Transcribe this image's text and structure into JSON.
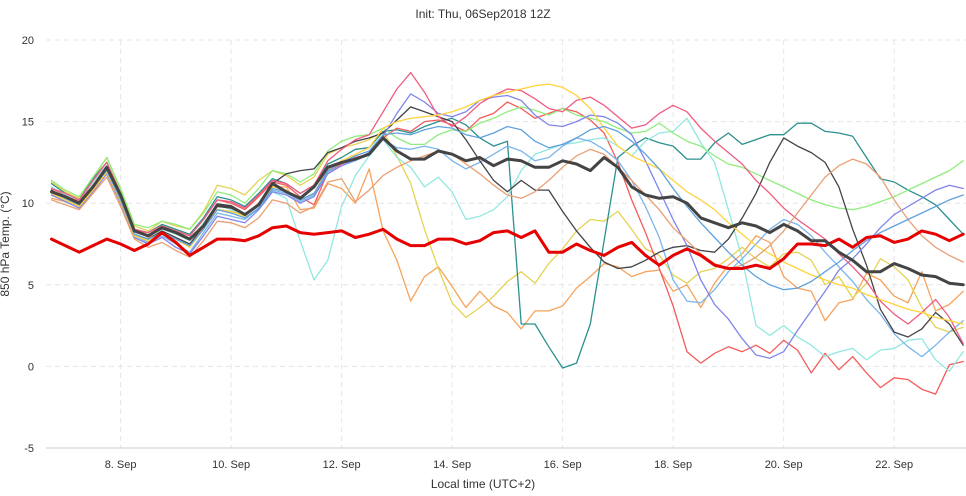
{
  "chart_data": {
    "type": "line",
    "title": "Init: Thu, 06Sep2018 12Z",
    "xlabel": "Local time (UTC+2)",
    "ylabel": "850 hPa Temp. (°C)",
    "ylim": [
      -5,
      20
    ],
    "yticks": [
      -5,
      0,
      5,
      10,
      15,
      20
    ],
    "xlim": [
      6.65,
      23.3
    ],
    "xticks": [
      8,
      10,
      12,
      14,
      16,
      18,
      20,
      22
    ],
    "xtick_labels": [
      "8. Sep",
      "10. Sep",
      "12. Sep",
      "14. Sep",
      "16. Sep",
      "18. Sep",
      "20. Sep",
      "22. Sep"
    ],
    "grid": true,
    "legend": "none",
    "x_unit": "day of September 2018 (local time)",
    "x": [
      6.75,
      7.0,
      7.25,
      7.5,
      7.75,
      8.0,
      8.25,
      8.5,
      8.75,
      9.0,
      9.25,
      9.5,
      9.75,
      10.0,
      10.25,
      10.5,
      10.75,
      11.0,
      11.25,
      11.5,
      11.75,
      12.0,
      12.25,
      12.5,
      12.75,
      13.0,
      13.25,
      13.5,
      13.75,
      14.0,
      14.25,
      14.5,
      14.75,
      15.0,
      15.25,
      15.5,
      15.75,
      16.0,
      16.25,
      16.5,
      16.75,
      17.0,
      17.25,
      17.5,
      17.75,
      18.0,
      18.25,
      18.5,
      18.75,
      19.0,
      19.25,
      19.5,
      19.75,
      20.0,
      20.25,
      20.5,
      20.75,
      21.0,
      21.25,
      21.5,
      21.75,
      22.0,
      22.25,
      22.5,
      22.75,
      23.0,
      23.25
    ],
    "series": [
      {
        "color": "#e60000",
        "width": 3,
        "values": [
          7.8,
          7.4,
          7.0,
          7.4,
          7.8,
          7.5,
          7.1,
          7.5,
          8.2,
          7.6,
          6.8,
          7.3,
          7.8,
          7.8,
          7.7,
          8.0,
          8.5,
          8.6,
          8.2,
          8.1,
          8.2,
          8.3,
          7.9,
          8.1,
          8.4,
          7.8,
          7.4,
          7.4,
          7.8,
          7.8,
          7.5,
          7.7,
          8.2,
          8.3,
          7.9,
          8.3,
          7.0,
          7.0,
          7.5,
          7.1,
          6.8,
          7.3,
          7.6,
          6.8,
          6.2,
          6.8,
          7.2,
          6.8,
          6.2,
          6.0,
          6.0,
          6.2,
          6.0,
          6.6,
          7.5,
          7.5,
          7.4,
          7.8,
          7.3,
          7.9,
          8.0,
          7.6,
          7.8,
          8.3,
          8.1,
          7.7,
          8.1
        ]
      },
      {
        "color": "#444444",
        "width": 3,
        "values": [
          10.7,
          10.4,
          10.0,
          11.0,
          12.2,
          10.5,
          8.3,
          8.0,
          8.5,
          8.2,
          7.8,
          8.6,
          9.9,
          9.8,
          9.3,
          9.9,
          11.2,
          10.7,
          10.3,
          11.0,
          12.2,
          12.5,
          12.7,
          13.0,
          14.0,
          13.2,
          12.7,
          12.7,
          13.2,
          13.0,
          12.6,
          12.8,
          12.3,
          12.7,
          12.6,
          12.2,
          12.2,
          12.6,
          12.4,
          12.0,
          12.8,
          12.2,
          11.0,
          10.5,
          10.3,
          10.4,
          10.0,
          9.1,
          8.8,
          8.5,
          8.8,
          8.6,
          8.2,
          8.7,
          8.3,
          7.7,
          7.7,
          7.0,
          6.5,
          5.8,
          5.8,
          6.3,
          6.0,
          5.6,
          5.5,
          5.1,
          5.0
        ]
      },
      {
        "color": "#f7a35c",
        "width": 1.3,
        "values": [
          10.3,
          10.1,
          9.9,
          11.0,
          12.0,
          10.3,
          8.4,
          7.9,
          8.2,
          7.8,
          7.4,
          8.5,
          9.6,
          9.5,
          9.3,
          10.0,
          11.0,
          11.0,
          9.6,
          9.7,
          11.2,
          10.9,
          10.0,
          12.1,
          8.3,
          6.5,
          4.0,
          5.5,
          6.1,
          4.9,
          3.6,
          4.6,
          3.7,
          3.3,
          2.3,
          3.4,
          3.4,
          3.7,
          4.8,
          5.5,
          6.3,
          6.1,
          5.5,
          5.8,
          5.9,
          4.6,
          5.0,
          3.6,
          5.1,
          6.2,
          6.9,
          8.0,
          7.6,
          5.5,
          4.8,
          4.6,
          2.8,
          3.9,
          4.1,
          5.7,
          5.3,
          4.3,
          3.9,
          5.8,
          3.4,
          3.8,
          4.6
        ]
      },
      {
        "color": "#e4d354",
        "width": 1.3,
        "values": [
          11.3,
          10.7,
          10.3,
          11.5,
          12.8,
          10.8,
          8.6,
          8.3,
          8.9,
          8.6,
          8.4,
          9.5,
          11.1,
          10.9,
          10.5,
          11.4,
          12.0,
          11.7,
          11.1,
          11.6,
          13.0,
          13.4,
          13.6,
          13.9,
          14.4,
          12.9,
          11.2,
          8.4,
          6.0,
          3.9,
          3.0,
          3.6,
          4.3,
          5.2,
          5.8,
          5.1,
          6.3,
          7.2,
          8.3,
          9.0,
          8.9,
          9.5,
          8.4,
          7.2,
          6.8,
          5.6,
          5.1,
          5.8,
          6.0,
          6.6,
          7.3,
          6.6,
          6.1,
          6.9,
          7.0,
          6.5,
          5.0,
          5.5,
          4.2,
          5.1,
          6.6,
          6.1,
          5.3,
          3.6,
          2.4,
          2.1,
          2.4
        ]
      },
      {
        "color": "#2b908f",
        "width": 1.3,
        "values": [
          11.2,
          10.6,
          10.2,
          11.5,
          12.5,
          10.6,
          8.4,
          8.2,
          8.7,
          8.4,
          8.1,
          9.1,
          10.4,
          10.2,
          9.8,
          10.6,
          11.5,
          11.2,
          10.6,
          11.1,
          12.4,
          12.8,
          13.3,
          13.4,
          14.4,
          14.5,
          14.3,
          14.7,
          15.0,
          15.2,
          14.8,
          14.0,
          13.5,
          13.8,
          2.6,
          2.6,
          1.2,
          -0.1,
          0.2,
          2.6,
          7.7,
          12.8,
          13.5,
          14.0,
          13.7,
          13.5,
          12.7,
          12.7,
          13.7,
          14.3,
          13.6,
          13.9,
          14.2,
          14.2,
          14.9,
          14.9,
          14.4,
          14.3,
          14.1,
          12.8,
          11.5,
          11.3,
          10.8,
          10.4,
          9.9,
          9.0,
          8.1
        ]
      },
      {
        "color": "#f45b5b",
        "width": 1.3,
        "values": [
          10.9,
          10.5,
          10.1,
          11.3,
          12.3,
          10.6,
          8.3,
          8.2,
          8.6,
          8.3,
          8.0,
          9.0,
          10.2,
          10.0,
          9.6,
          10.4,
          11.3,
          11.1,
          10.4,
          9.9,
          11.9,
          12.4,
          12.8,
          13.0,
          14.0,
          14.6,
          14.4,
          15.0,
          15.1,
          14.8,
          14.4,
          15.2,
          15.5,
          16.2,
          15.8,
          15.2,
          15.5,
          15.8,
          15.6,
          15.1,
          14.3,
          12.5,
          10.2,
          8.2,
          6.0,
          3.7,
          0.9,
          0.2,
          0.8,
          1.2,
          0.9,
          1.3,
          0.8,
          1.6,
          1.0,
          -0.4,
          0.8,
          -0.2,
          0.6,
          -0.4,
          -1.3,
          -0.7,
          -0.8,
          -1.4,
          -1.7,
          0.1,
          0.3
        ]
      },
      {
        "color": "#91e8e1",
        "width": 1.3,
        "values": [
          11.0,
          10.5,
          10.2,
          11.3,
          12.3,
          10.4,
          8.3,
          8.0,
          8.4,
          8.1,
          7.7,
          8.8,
          9.9,
          9.6,
          9.3,
          9.9,
          10.7,
          10.3,
          7.7,
          5.3,
          6.5,
          9.8,
          11.7,
          12.9,
          13.9,
          12.8,
          12.2,
          11.0,
          11.6,
          10.7,
          9.0,
          9.2,
          9.6,
          10.4,
          12.0,
          13.0,
          13.3,
          13.6,
          13.7,
          13.9,
          14.0,
          13.5,
          12.9,
          13.8,
          14.3,
          14.4,
          15.2,
          13.7,
          12.5,
          9.6,
          6.6,
          2.5,
          1.9,
          2.5,
          1.8,
          1.3,
          0.6,
          0.9,
          1.1,
          0.4,
          1.0,
          1.1,
          1.6,
          1.7,
          0.4,
          -0.3,
          0.9
        ]
      },
      {
        "color": "#7cb5ec",
        "width": 1.3,
        "values": [
          10.6,
          10.2,
          9.8,
          10.9,
          11.9,
          10.1,
          8.0,
          7.6,
          8.0,
          7.5,
          7.0,
          8.2,
          9.4,
          9.2,
          9.0,
          9.7,
          10.8,
          10.6,
          10.1,
          10.5,
          11.9,
          12.3,
          12.6,
          13.0,
          13.9,
          13.4,
          13.3,
          13.5,
          13.3,
          12.6,
          12.1,
          12.5,
          13.0,
          13.5,
          13.2,
          12.6,
          12.8,
          13.5,
          14.0,
          13.8,
          13.3,
          12.6,
          11.4,
          9.8,
          7.9,
          5.3,
          4.0,
          3.9,
          4.7,
          5.8,
          6.6,
          7.5,
          8.4,
          9.0,
          8.7,
          8.0,
          7.0,
          6.1,
          5.2,
          4.1,
          3.2,
          2.0,
          1.2,
          0.6,
          1.3,
          2.1,
          2.8
        ]
      },
      {
        "color": "#90ed7d",
        "width": 1.3,
        "values": [
          11.4,
          10.8,
          10.4,
          11.6,
          12.8,
          10.9,
          8.7,
          8.5,
          8.9,
          8.7,
          8.4,
          9.4,
          10.7,
          10.5,
          10.0,
          10.9,
          12.0,
          11.8,
          11.3,
          11.8,
          13.2,
          13.8,
          14.1,
          14.2,
          14.6,
          14.0,
          13.6,
          13.6,
          14.2,
          14.5,
          14.4,
          14.9,
          15.2,
          15.6,
          15.9,
          15.7,
          15.4,
          15.8,
          15.4,
          15.2,
          15.0,
          14.6,
          14.3,
          14.4,
          14.9,
          14.3,
          13.8,
          13.5,
          12.9,
          12.4,
          12.2,
          11.8,
          11.4,
          11.0,
          10.6,
          10.2,
          9.9,
          9.7,
          9.6,
          9.8,
          10.1,
          10.4,
          10.8,
          11.2,
          11.6,
          12.0,
          12.6
        ]
      },
      {
        "color": "#434348",
        "width": 1.3,
        "values": [
          10.8,
          10.3,
          9.9,
          11.1,
          12.1,
          10.3,
          8.1,
          7.8,
          8.3,
          7.9,
          7.5,
          8.6,
          9.8,
          9.7,
          9.3,
          9.9,
          11.2,
          11.8,
          12.0,
          12.1,
          13.1,
          13.4,
          13.8,
          14.0,
          14.3,
          15.1,
          15.9,
          15.6,
          15.3,
          15.0,
          13.9,
          12.6,
          11.4,
          10.7,
          11.4,
          10.8,
          10.8,
          9.5,
          8.3,
          7.3,
          6.4,
          6.0,
          6.1,
          6.5,
          7.0,
          7.3,
          7.4,
          7.1,
          7.0,
          7.8,
          9.1,
          10.6,
          12.5,
          14.0,
          13.5,
          13.1,
          12.5,
          11.0,
          8.4,
          6.2,
          3.5,
          2.1,
          1.8,
          2.3,
          3.3,
          2.6,
          1.3
        ]
      },
      {
        "color": "#8085e9",
        "width": 1.3,
        "values": [
          10.5,
          10.1,
          9.7,
          10.7,
          11.8,
          10.0,
          7.9,
          7.5,
          7.9,
          7.3,
          6.9,
          8.0,
          9.2,
          9.0,
          8.8,
          9.6,
          10.7,
          10.5,
          10.0,
          10.4,
          11.8,
          12.3,
          12.7,
          13.1,
          14.1,
          15.5,
          16.7,
          16.2,
          15.5,
          15.3,
          15.6,
          16.3,
          16.5,
          16.6,
          16.3,
          15.4,
          14.8,
          14.7,
          15.0,
          15.4,
          15.3,
          14.9,
          14.2,
          12.6,
          10.8,
          9.0,
          7.4,
          5.3,
          3.8,
          2.9,
          1.7,
          0.7,
          0.5,
          0.9,
          2.2,
          3.4,
          4.6,
          5.9,
          6.6,
          7.5,
          8.5,
          9.3,
          9.8,
          10.3,
          10.8,
          11.1,
          10.9
        ]
      },
      {
        "color": "#f15c80",
        "width": 1.3,
        "values": [
          10.9,
          10.6,
          10.2,
          11.4,
          12.5,
          10.6,
          8.4,
          8.2,
          8.6,
          8.3,
          8.0,
          9.0,
          10.2,
          10.1,
          9.7,
          10.5,
          11.4,
          11.2,
          10.6,
          11.1,
          12.6,
          13.3,
          13.9,
          14.2,
          15.6,
          17.0,
          18.0,
          16.8,
          15.3,
          14.7,
          15.3,
          16.1,
          16.6,
          17.0,
          16.9,
          16.4,
          15.8,
          15.6,
          16.3,
          16.5,
          16.0,
          15.3,
          14.6,
          14.8,
          15.5,
          16.0,
          15.6,
          14.6,
          13.8,
          13.1,
          12.4,
          11.4,
          10.6,
          9.7,
          9.0,
          8.4,
          7.8,
          6.9,
          6.1,
          5.2,
          4.0,
          3.2,
          2.6,
          3.3,
          4.1,
          3.0,
          1.4
        ]
      },
      {
        "color": "#ffd43b",
        "width": 1.3,
        "values": [
          10.6,
          10.2,
          9.8,
          10.8,
          11.9,
          10.1,
          8.0,
          7.7,
          8.2,
          7.8,
          7.3,
          8.4,
          9.6,
          9.5,
          9.2,
          9.9,
          11.0,
          10.8,
          10.2,
          10.6,
          12.1,
          12.6,
          13.0,
          13.4,
          14.6,
          15.0,
          15.2,
          15.3,
          15.4,
          15.6,
          15.9,
          16.3,
          16.6,
          16.8,
          17.0,
          17.2,
          17.3,
          17.1,
          16.6,
          15.8,
          14.6,
          13.5,
          12.9,
          12.5,
          12.1,
          11.4,
          10.7,
          10.2,
          9.6,
          8.8,
          8.1,
          7.4,
          6.9,
          6.4,
          6.0,
          5.6,
          5.3,
          5.0,
          4.8,
          4.4,
          4.1,
          3.8,
          3.5,
          3.3,
          3.0,
          2.8,
          2.6
        ]
      },
      {
        "color": "#ea9f73",
        "width": 1.3,
        "values": [
          10.2,
          9.9,
          9.6,
          10.6,
          11.6,
          9.8,
          7.8,
          7.3,
          7.6,
          7.1,
          6.7,
          7.7,
          8.9,
          8.8,
          8.5,
          9.1,
          10.2,
          10.0,
          9.4,
          9.8,
          11.3,
          11.5,
          10.1,
          10.8,
          11.7,
          12.2,
          12.6,
          12.9,
          13.2,
          13.0,
          12.4,
          11.8,
          11.1,
          10.5,
          10.3,
          10.7,
          11.4,
          12.2,
          12.9,
          13.3,
          13.0,
          12.2,
          11.4,
          10.5,
          9.6,
          8.5,
          7.7,
          6.9,
          6.3,
          6.0,
          6.2,
          6.7,
          7.4,
          8.3,
          9.4,
          10.5,
          11.6,
          12.3,
          12.7,
          12.4,
          11.6,
          10.2,
          9.0,
          8.0,
          7.3,
          6.8,
          6.4
        ]
      },
      {
        "color": "#5fa2dd",
        "width": 1.3,
        "values": [
          10.7,
          10.3,
          9.9,
          11.0,
          12.0,
          10.2,
          8.1,
          7.8,
          8.2,
          7.8,
          7.4,
          8.4,
          9.6,
          9.4,
          9.1,
          9.7,
          10.9,
          10.7,
          10.2,
          10.6,
          12.0,
          12.5,
          12.9,
          13.2,
          14.2,
          14.3,
          14.2,
          14.5,
          14.7,
          14.6,
          14.2,
          14.0,
          14.3,
          14.7,
          14.5,
          13.8,
          13.4,
          13.6,
          14.0,
          14.5,
          14.7,
          14.4,
          13.8,
          13.0,
          12.1,
          10.9,
          9.8,
          8.8,
          7.9,
          7.0,
          6.2,
          5.5,
          5.0,
          4.7,
          4.8,
          5.2,
          5.8,
          6.4,
          7.1,
          7.7,
          8.2,
          8.6,
          9.0,
          9.4,
          9.8,
          10.2,
          10.5
        ]
      }
    ]
  }
}
